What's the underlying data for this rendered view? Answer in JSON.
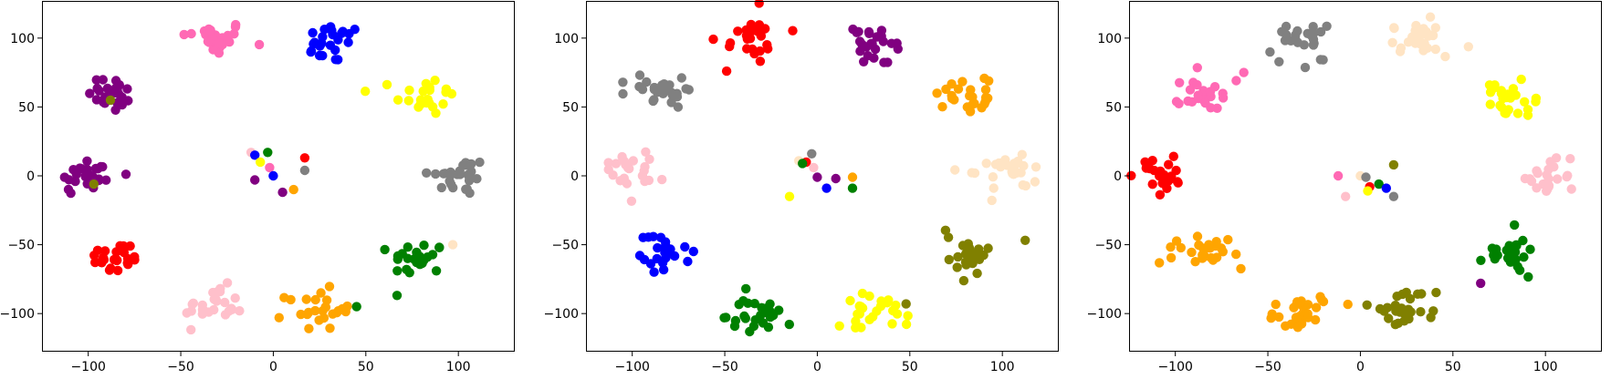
{
  "chart_data": [
    {
      "type": "scatter",
      "xlim": [
        -125,
        130
      ],
      "ylim": [
        -127,
        127
      ],
      "xticks": [
        -100,
        -50,
        0,
        50,
        100
      ],
      "yticks": [
        -100,
        -50,
        0,
        50,
        100
      ],
      "clusters": [
        {
          "color": "#ff69b4",
          "center": [
            -32,
            100
          ],
          "sx": 11,
          "sy": 8,
          "n": 26
        },
        {
          "color": "#0000ff",
          "center": [
            32,
            96
          ],
          "sx": 10,
          "sy": 9,
          "n": 24
        },
        {
          "color": "#800080",
          "center": [
            -87,
            60
          ],
          "sx": 8,
          "sy": 9,
          "n": 24
        },
        {
          "color": "#ffff00",
          "center": [
            82,
            58
          ],
          "sx": 10,
          "sy": 9,
          "n": 24
        },
        {
          "color": "#800080",
          "center": [
            -100,
            0
          ],
          "sx": 11,
          "sy": 9,
          "n": 26
        },
        {
          "color": "#808080",
          "center": [
            100,
            0
          ],
          "sx": 10,
          "sy": 9,
          "n": 26
        },
        {
          "color": "#ff0000",
          "center": [
            -85,
            -60
          ],
          "sx": 9,
          "sy": 8,
          "n": 24
        },
        {
          "color": "#008000",
          "center": [
            78,
            -60
          ],
          "sx": 9,
          "sy": 8,
          "n": 24
        },
        {
          "color": "#ffc0cb",
          "center": [
            -32,
            -95
          ],
          "sx": 10,
          "sy": 9,
          "n": 26
        },
        {
          "color": "#ffa500",
          "center": [
            25,
            -97
          ],
          "sx": 11,
          "sy": 9,
          "n": 26
        }
      ],
      "points": [
        {
          "x": -12,
          "y": 17,
          "color": "#ffc0cb"
        },
        {
          "x": -10,
          "y": 15,
          "color": "#0000ff"
        },
        {
          "x": -3,
          "y": 17,
          "color": "#008000"
        },
        {
          "x": -7,
          "y": 10,
          "color": "#ffff00"
        },
        {
          "x": 17,
          "y": 13,
          "color": "#ff0000"
        },
        {
          "x": 17,
          "y": 4,
          "color": "#808080"
        },
        {
          "x": -2,
          "y": 6,
          "color": "#ff69b4"
        },
        {
          "x": 0,
          "y": 0,
          "color": "#0000ff"
        },
        {
          "x": -10,
          "y": -3,
          "color": "#800080"
        },
        {
          "x": 5,
          "y": -12,
          "color": "#800080"
        },
        {
          "x": 11,
          "y": -10,
          "color": "#ffa500"
        },
        {
          "x": -88,
          "y": 55,
          "color": "#808000"
        },
        {
          "x": -97,
          "y": -6,
          "color": "#808000"
        },
        {
          "x": 45,
          "y": -95,
          "color": "#008000"
        },
        {
          "x": 97,
          "y": -50,
          "color": "#ffe4c4"
        }
      ]
    },
    {
      "type": "scatter",
      "xlim": [
        -125,
        130
      ],
      "ylim": [
        -127,
        127
      ],
      "xticks": [
        -100,
        -50,
        0,
        50,
        100
      ],
      "yticks": [
        -100,
        -50,
        0,
        50,
        100
      ],
      "clusters": [
        {
          "color": "#ff0000",
          "center": [
            -33,
            100
          ],
          "sx": 12,
          "sy": 9,
          "n": 26
        },
        {
          "color": "#800080",
          "center": [
            30,
            95
          ],
          "sx": 10,
          "sy": 9,
          "n": 24
        },
        {
          "color": "#808080",
          "center": [
            -85,
            62
          ],
          "sx": 10,
          "sy": 9,
          "n": 26
        },
        {
          "color": "#ffa500",
          "center": [
            78,
            60
          ],
          "sx": 10,
          "sy": 8,
          "n": 24
        },
        {
          "color": "#ffc0cb",
          "center": [
            -100,
            3
          ],
          "sx": 9,
          "sy": 9,
          "n": 22
        },
        {
          "color": "#ffe4c4",
          "center": [
            100,
            0
          ],
          "sx": 10,
          "sy": 9,
          "n": 26
        },
        {
          "color": "#0000ff",
          "center": [
            -85,
            -55
          ],
          "sx": 9,
          "sy": 9,
          "n": 24
        },
        {
          "color": "#808000",
          "center": [
            80,
            -57
          ],
          "sx": 10,
          "sy": 9,
          "n": 26
        },
        {
          "color": "#008000",
          "center": [
            -32,
            -102
          ],
          "sx": 11,
          "sy": 8,
          "n": 28
        },
        {
          "color": "#ffff00",
          "center": [
            30,
            -98
          ],
          "sx": 10,
          "sy": 9,
          "n": 26
        }
      ],
      "points": [
        {
          "x": -10,
          "y": 11,
          "color": "#ffe4c4"
        },
        {
          "x": -6,
          "y": 10,
          "color": "#ff0000"
        },
        {
          "x": -8,
          "y": 9,
          "color": "#008000"
        },
        {
          "x": -3,
          "y": 16,
          "color": "#808080"
        },
        {
          "x": -2,
          "y": 6,
          "color": "#ffc0cb"
        },
        {
          "x": 0,
          "y": -1,
          "color": "#800080"
        },
        {
          "x": 5,
          "y": -9,
          "color": "#0000ff"
        },
        {
          "x": 10,
          "y": -2,
          "color": "#800080"
        },
        {
          "x": 19,
          "y": -1,
          "color": "#ffa500"
        },
        {
          "x": 19,
          "y": -9,
          "color": "#008000"
        },
        {
          "x": -15,
          "y": -15,
          "color": "#ffff00"
        },
        {
          "x": -49,
          "y": 76,
          "color": "#ff0000"
        },
        {
          "x": 48,
          "y": -93,
          "color": "#808000"
        }
      ]
    },
    {
      "type": "scatter",
      "xlim": [
        -125,
        130
      ],
      "ylim": [
        -127,
        127
      ],
      "xticks": [
        -100,
        -50,
        0,
        50,
        100
      ],
      "yticks": [
        -100,
        -50,
        0,
        50,
        100
      ],
      "clusters": [
        {
          "color": "#808080",
          "center": [
            -33,
            95
          ],
          "sx": 10,
          "sy": 9,
          "n": 24
        },
        {
          "color": "#ffe4c4",
          "center": [
            32,
            100
          ],
          "sx": 11,
          "sy": 9,
          "n": 26
        },
        {
          "color": "#ff69b4",
          "center": [
            -85,
            60
          ],
          "sx": 9,
          "sy": 9,
          "n": 24
        },
        {
          "color": "#ffff00",
          "center": [
            83,
            55
          ],
          "sx": 10,
          "sy": 9,
          "n": 26
        },
        {
          "color": "#ff0000",
          "center": [
            -103,
            0
          ],
          "sx": 9,
          "sy": 9,
          "n": 24
        },
        {
          "color": "#ffc0cb",
          "center": [
            102,
            0
          ],
          "sx": 9,
          "sy": 9,
          "n": 22
        },
        {
          "color": "#ffa500",
          "center": [
            -85,
            -55
          ],
          "sx": 10,
          "sy": 9,
          "n": 26
        },
        {
          "color": "#008000",
          "center": [
            82,
            -57
          ],
          "sx": 10,
          "sy": 9,
          "n": 26
        },
        {
          "color": "#ffa500",
          "center": [
            -30,
            -100
          ],
          "sx": 11,
          "sy": 9,
          "n": 28
        },
        {
          "color": "#808000",
          "center": [
            25,
            -97
          ],
          "sx": 10,
          "sy": 9,
          "n": 26
        }
      ],
      "points": [
        {
          "x": -12,
          "y": 0,
          "color": "#ff69b4"
        },
        {
          "x": -8,
          "y": -15,
          "color": "#ffc0cb"
        },
        {
          "x": 0,
          "y": 0,
          "color": "#ffe4c4"
        },
        {
          "x": 3,
          "y": -1,
          "color": "#808080"
        },
        {
          "x": 5,
          "y": -8,
          "color": "#ff0000"
        },
        {
          "x": 4,
          "y": -11,
          "color": "#ffff00"
        },
        {
          "x": 10,
          "y": -6,
          "color": "#008000"
        },
        {
          "x": 14,
          "y": -9,
          "color": "#0000ff"
        },
        {
          "x": 18,
          "y": -15,
          "color": "#808080"
        },
        {
          "x": 18,
          "y": 8,
          "color": "#808000"
        },
        {
          "x": 65,
          "y": -78,
          "color": "#800080"
        },
        {
          "x": -63,
          "y": 75,
          "color": "#ff69b4"
        }
      ]
    }
  ]
}
